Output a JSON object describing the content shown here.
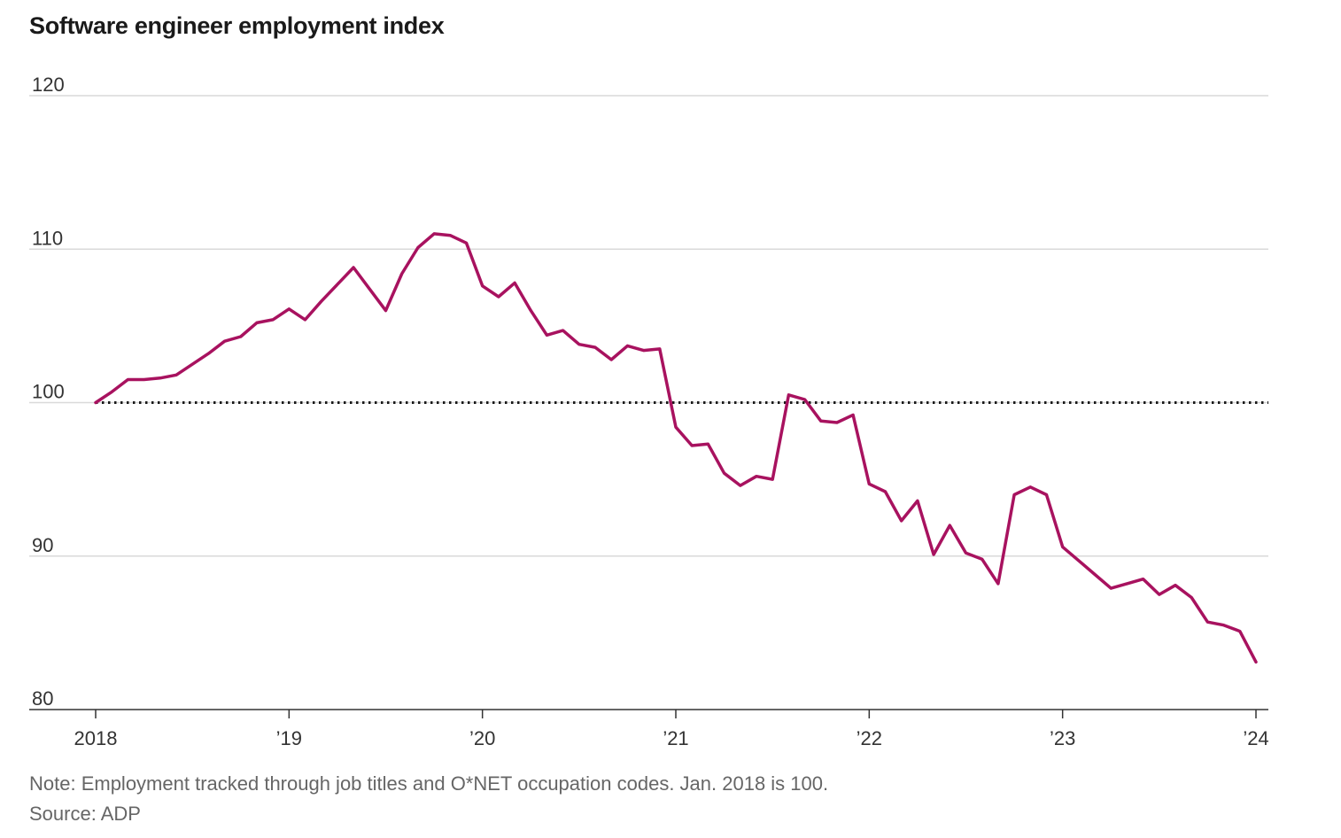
{
  "chart_data": {
    "type": "line",
    "title": "Software engineer employment index",
    "xlabel": "",
    "ylabel": "",
    "ylim": [
      80,
      120
    ],
    "xlim": [
      "2018-01",
      "2024-01"
    ],
    "yticks": [
      80,
      90,
      100,
      110,
      120
    ],
    "xticks": [
      {
        "label": "2018",
        "value": "2018-01"
      },
      {
        "label": "’19",
        "value": "2019-01"
      },
      {
        "label": "’20",
        "value": "2020-01"
      },
      {
        "label": "’21",
        "value": "2021-01"
      },
      {
        "label": "’22",
        "value": "2022-01"
      },
      {
        "label": "’23",
        "value": "2023-01"
      },
      {
        "label": "’24",
        "value": "2024-01"
      }
    ],
    "grid": true,
    "baseline": 100,
    "colors": {
      "series": "#a8125f",
      "grid": "#d9d9d9",
      "axis": "#333333",
      "baseline": "#1a1a1a"
    },
    "series": [
      {
        "x": [
          "2018-01",
          "2018-02",
          "2018-03",
          "2018-04",
          "2018-05",
          "2018-06",
          "2018-07",
          "2018-08",
          "2018-09",
          "2018-10",
          "2018-11",
          "2018-12",
          "2019-01",
          "2019-02",
          "2019-03",
          "2019-04",
          "2019-05",
          "2019-06",
          "2019-07",
          "2019-08",
          "2019-09",
          "2019-10",
          "2019-11",
          "2019-12",
          "2020-01",
          "2020-02",
          "2020-03",
          "2020-04",
          "2020-05",
          "2020-06",
          "2020-07",
          "2020-08",
          "2020-09",
          "2020-10",
          "2020-11",
          "2020-12",
          "2021-01",
          "2021-02",
          "2021-03",
          "2021-04",
          "2021-05",
          "2021-06",
          "2021-07",
          "2021-08",
          "2021-09",
          "2021-10",
          "2021-11",
          "2021-12",
          "2022-01",
          "2022-02",
          "2022-03",
          "2022-04",
          "2022-05",
          "2022-06",
          "2022-07",
          "2022-08",
          "2022-09",
          "2022-10",
          "2022-11",
          "2022-12",
          "2023-01",
          "2023-02",
          "2023-03",
          "2023-04",
          "2023-05",
          "2023-06",
          "2023-07",
          "2023-08",
          "2023-09",
          "2023-10",
          "2023-11",
          "2023-12",
          "2024-01"
        ],
        "values": [
          100.0,
          100.7,
          101.5,
          101.5,
          101.6,
          101.8,
          102.5,
          103.2,
          104.0,
          104.3,
          105.2,
          105.4,
          106.1,
          105.4,
          106.6,
          107.7,
          108.8,
          107.4,
          106.0,
          108.4,
          110.1,
          111.0,
          110.9,
          110.4,
          107.6,
          106.9,
          107.8,
          106.0,
          104.4,
          104.7,
          103.8,
          103.6,
          102.8,
          103.7,
          103.4,
          103.5,
          98.4,
          97.2,
          97.3,
          95.4,
          94.6,
          95.2,
          95.0,
          100.5,
          100.2,
          98.8,
          98.7,
          99.2,
          94.7,
          94.2,
          92.3,
          93.6,
          90.1,
          92.0,
          90.2,
          89.8,
          88.2,
          94.0,
          94.5,
          94.0,
          90.6,
          89.7,
          88.8,
          87.9,
          88.2,
          88.5,
          87.5,
          88.1,
          87.3,
          85.7,
          85.5,
          85.1,
          83.1
        ]
      }
    ]
  },
  "footer": {
    "note": "Note: Employment tracked through job titles and O*NET occupation codes. Jan. 2018 is 100.",
    "source": "Source: ADP"
  }
}
